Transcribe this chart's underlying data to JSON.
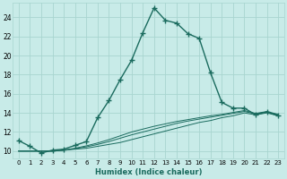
{
  "xlabel": "Humidex (Indice chaleur)",
  "xlim": [
    -0.5,
    23.5
  ],
  "ylim": [
    9.2,
    25.5
  ],
  "yticks": [
    10,
    12,
    14,
    16,
    18,
    20,
    22,
    24
  ],
  "bg_color": "#c8ebe8",
  "grid_color": "#a8d5d0",
  "line_color": "#1a6b5e",
  "line1_x": [
    0,
    1,
    2,
    3,
    4,
    5,
    6,
    7,
    8,
    9,
    10,
    11,
    12,
    13,
    14,
    15,
    16,
    17,
    18,
    19,
    20,
    21,
    22,
    23
  ],
  "line1_y": [
    11.1,
    10.5,
    9.8,
    10.1,
    10.2,
    10.6,
    11.0,
    13.5,
    15.3,
    17.5,
    19.5,
    22.4,
    25.0,
    23.7,
    23.4,
    22.3,
    21.8,
    18.2,
    15.1,
    14.5,
    14.5,
    13.8,
    14.1,
    13.7
  ],
  "line2_x": [
    0,
    1,
    2,
    3,
    4,
    5,
    6,
    7,
    8,
    9,
    10,
    11,
    12,
    13,
    14,
    15,
    16,
    17,
    18,
    19,
    20,
    21,
    22,
    23
  ],
  "line2_y": [
    10.0,
    10.0,
    10.0,
    10.0,
    10.1,
    10.2,
    10.3,
    10.5,
    10.7,
    10.9,
    11.2,
    11.5,
    11.8,
    12.1,
    12.4,
    12.7,
    13.0,
    13.2,
    13.5,
    13.7,
    14.0,
    13.8,
    14.0,
    13.7
  ],
  "line3_x": [
    0,
    1,
    2,
    3,
    4,
    5,
    6,
    7,
    8,
    9,
    10,
    11,
    12,
    13,
    14,
    15,
    16,
    17,
    18,
    19,
    20,
    21,
    22,
    23
  ],
  "line3_y": [
    10.0,
    10.0,
    10.0,
    10.0,
    10.1,
    10.25,
    10.45,
    10.7,
    11.0,
    11.35,
    11.7,
    12.0,
    12.3,
    12.6,
    12.9,
    13.15,
    13.35,
    13.55,
    13.75,
    13.95,
    14.15,
    13.9,
    14.1,
    13.8
  ],
  "line4_x": [
    0,
    1,
    2,
    3,
    4,
    5,
    6,
    7,
    8,
    9,
    10,
    11,
    12,
    13,
    14,
    15,
    16,
    17,
    18,
    19,
    20,
    21,
    22,
    23
  ],
  "line4_y": [
    10.0,
    10.0,
    10.0,
    10.0,
    10.1,
    10.3,
    10.55,
    10.85,
    11.2,
    11.6,
    12.0,
    12.3,
    12.6,
    12.85,
    13.1,
    13.3,
    13.5,
    13.7,
    13.85,
    14.05,
    14.25,
    13.95,
    14.15,
    13.85
  ]
}
